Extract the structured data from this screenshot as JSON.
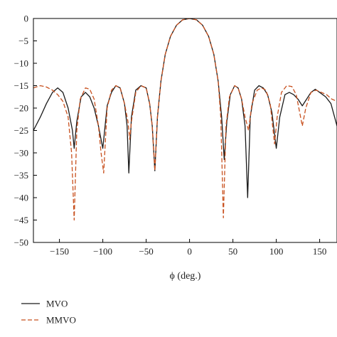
{
  "chart_data": {
    "type": "line",
    "xlabel": "ϕ (deg.)",
    "ylabel": "",
    "xlim": [
      -180,
      170
    ],
    "ylim": [
      -50,
      0
    ],
    "xticks": [
      -150,
      -100,
      -50,
      0,
      50,
      100,
      150
    ],
    "yticks": [
      0,
      -5,
      -10,
      -15,
      -20,
      -25,
      -30,
      -35,
      -40,
      -45,
      -50
    ],
    "grid": false,
    "legend_position": "bottom-left",
    "series": [
      {
        "name": "MVO",
        "color": "#1a1a1a",
        "dash": "solid",
        "points": [
          [
            -180,
            -25
          ],
          [
            -172,
            -22
          ],
          [
            -165,
            -19
          ],
          [
            -158,
            -16.5
          ],
          [
            -152,
            -15.5
          ],
          [
            -146,
            -16.5
          ],
          [
            -140,
            -20
          ],
          [
            -135,
            -25
          ],
          [
            -133,
            -29
          ],
          [
            -130,
            -23
          ],
          [
            -125,
            -17.5
          ],
          [
            -120,
            -16.5
          ],
          [
            -115,
            -17.5
          ],
          [
            -110,
            -20
          ],
          [
            -105,
            -24
          ],
          [
            -100,
            -29
          ],
          [
            -95,
            -19.5
          ],
          [
            -90,
            -16.5
          ],
          [
            -85,
            -15
          ],
          [
            -80,
            -15.5
          ],
          [
            -75,
            -19
          ],
          [
            -72,
            -24
          ],
          [
            -70,
            -34.5
          ],
          [
            -67,
            -22
          ],
          [
            -62,
            -16
          ],
          [
            -56,
            -15
          ],
          [
            -50,
            -15.5
          ],
          [
            -46,
            -19
          ],
          [
            -43,
            -24
          ],
          [
            -40,
            -34
          ],
          [
            -37,
            -22
          ],
          [
            -33,
            -14
          ],
          [
            -28,
            -8
          ],
          [
            -22,
            -4
          ],
          [
            -15,
            -1.5
          ],
          [
            -8,
            -0.3
          ],
          [
            0,
            0
          ],
          [
            8,
            -0.3
          ],
          [
            15,
            -1.5
          ],
          [
            22,
            -4
          ],
          [
            28,
            -8
          ],
          [
            33,
            -14
          ],
          [
            37,
            -22
          ],
          [
            40,
            -31.5
          ],
          [
            43,
            -23
          ],
          [
            47,
            -17
          ],
          [
            52,
            -15
          ],
          [
            56,
            -15.5
          ],
          [
            60,
            -18
          ],
          [
            64,
            -24
          ],
          [
            67,
            -40
          ],
          [
            70,
            -22
          ],
          [
            75,
            -16
          ],
          [
            80,
            -15
          ],
          [
            85,
            -15.5
          ],
          [
            90,
            -17
          ],
          [
            95,
            -21
          ],
          [
            100,
            -29
          ],
          [
            104,
            -22
          ],
          [
            110,
            -17
          ],
          [
            115,
            -16.5
          ],
          [
            120,
            -17
          ],
          [
            125,
            -18
          ],
          [
            130,
            -19.5
          ],
          [
            135,
            -18
          ],
          [
            140,
            -16.5
          ],
          [
            145,
            -15.8
          ],
          [
            150,
            -16.5
          ],
          [
            157,
            -17.5
          ],
          [
            163,
            -19
          ],
          [
            170,
            -24
          ]
        ]
      },
      {
        "name": "MMVO",
        "color": "#c8501e",
        "dash": "dashed",
        "points": [
          [
            -180,
            -15.5
          ],
          [
            -172,
            -15
          ],
          [
            -165,
            -15.3
          ],
          [
            -158,
            -16
          ],
          [
            -152,
            -17
          ],
          [
            -146,
            -18.5
          ],
          [
            -140,
            -22
          ],
          [
            -136,
            -30
          ],
          [
            -133,
            -45
          ],
          [
            -130,
            -25
          ],
          [
            -126,
            -18
          ],
          [
            -120,
            -15.5
          ],
          [
            -115,
            -15.8
          ],
          [
            -110,
            -18
          ],
          [
            -105,
            -24
          ],
          [
            -102,
            -30
          ],
          [
            -99,
            -34.5
          ],
          [
            -95,
            -20
          ],
          [
            -90,
            -16
          ],
          [
            -85,
            -15
          ],
          [
            -80,
            -15.5
          ],
          [
            -75,
            -19
          ],
          [
            -71,
            -23
          ],
          [
            -69,
            -27
          ],
          [
            -67,
            -23
          ],
          [
            -62,
            -16.5
          ],
          [
            -56,
            -15
          ],
          [
            -50,
            -15.5
          ],
          [
            -46,
            -19
          ],
          [
            -43,
            -24
          ],
          [
            -40,
            -34
          ],
          [
            -37,
            -22
          ],
          [
            -33,
            -14
          ],
          [
            -28,
            -8
          ],
          [
            -22,
            -4
          ],
          [
            -15,
            -1.5
          ],
          [
            -8,
            -0.3
          ],
          [
            0,
            0
          ],
          [
            8,
            -0.3
          ],
          [
            15,
            -1.5
          ],
          [
            22,
            -4
          ],
          [
            28,
            -8
          ],
          [
            33,
            -14
          ],
          [
            36,
            -22
          ],
          [
            39,
            -44.5
          ],
          [
            42,
            -24
          ],
          [
            46,
            -17.5
          ],
          [
            52,
            -15
          ],
          [
            56,
            -15.5
          ],
          [
            60,
            -18
          ],
          [
            64,
            -22
          ],
          [
            68,
            -25
          ],
          [
            72,
            -19
          ],
          [
            78,
            -16
          ],
          [
            83,
            -15.5
          ],
          [
            88,
            -16
          ],
          [
            93,
            -19
          ],
          [
            98,
            -28
          ],
          [
            101,
            -22
          ],
          [
            106,
            -16.5
          ],
          [
            112,
            -15
          ],
          [
            118,
            -15.2
          ],
          [
            123,
            -17
          ],
          [
            127,
            -21
          ],
          [
            130,
            -24
          ],
          [
            134,
            -20
          ],
          [
            140,
            -16.5
          ],
          [
            146,
            -16
          ],
          [
            152,
            -16.5
          ],
          [
            158,
            -17
          ],
          [
            164,
            -18
          ],
          [
            170,
            -18.5
          ]
        ]
      }
    ]
  }
}
